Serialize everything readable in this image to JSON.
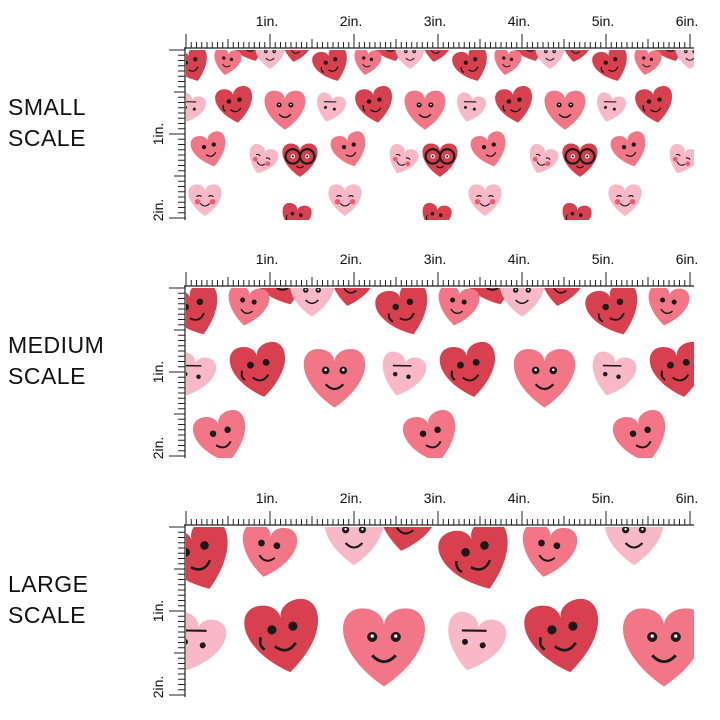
{
  "panels": [
    {
      "id": "small",
      "label_line1": "SMALL",
      "label_line2": "SCALE",
      "pattern_scale": 1
    },
    {
      "id": "medium",
      "label_line1": "MEDIUM",
      "label_line2": "SCALE",
      "pattern_scale": 1.5
    },
    {
      "id": "large",
      "label_line1": "LARGE",
      "label_line2": "SCALE",
      "pattern_scale": 2
    }
  ],
  "ruler": {
    "horizontal_labels": [
      "1in.",
      "2in.",
      "3in.",
      "4in.",
      "5in.",
      "6in."
    ],
    "vertical_labels": [
      "1in.",
      "2in."
    ]
  },
  "colors": {
    "dark_heart": "#d8404f",
    "pink_heart": "#f27686",
    "light_heart": "#f9b8c5",
    "cheek": "#ee5a6a",
    "ink": "#1a1a1a"
  }
}
